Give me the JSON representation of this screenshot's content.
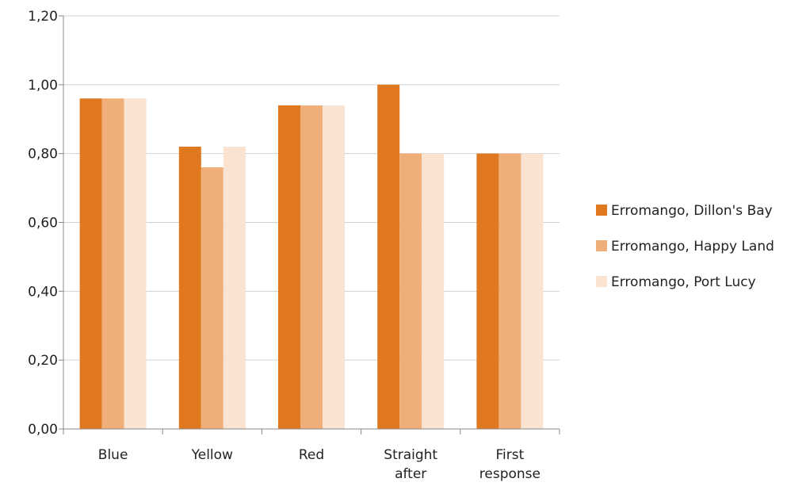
{
  "chart_data": {
    "type": "bar",
    "categories": [
      [
        "Blue"
      ],
      [
        "Yellow"
      ],
      [
        "Red"
      ],
      [
        "Straight",
        "after"
      ],
      [
        "First",
        "response"
      ]
    ],
    "series": [
      {
        "name": "Erromango, Dillon's Bay",
        "values": [
          0.96,
          0.82,
          0.94,
          1.0,
          0.8
        ],
        "color": "#E07820"
      },
      {
        "name": "Erromango, Happy Land",
        "values": [
          0.96,
          0.76,
          0.94,
          0.8,
          0.8
        ],
        "color": "#F0AE78"
      },
      {
        "name": "Erromango, Port Lucy",
        "values": [
          0.96,
          0.82,
          0.94,
          0.8,
          0.8
        ],
        "color": "#FAE3D0"
      }
    ],
    "y_ticks": [
      "0,00",
      "0,20",
      "0,40",
      "0,60",
      "0,80",
      "1,00",
      "1,20"
    ],
    "ylim": [
      0,
      1.2
    ],
    "y_tick_step": 0.2,
    "grid": true,
    "legend_position": "right",
    "colors": {
      "grid": "#D0D0D0",
      "axis": "#888888"
    }
  }
}
